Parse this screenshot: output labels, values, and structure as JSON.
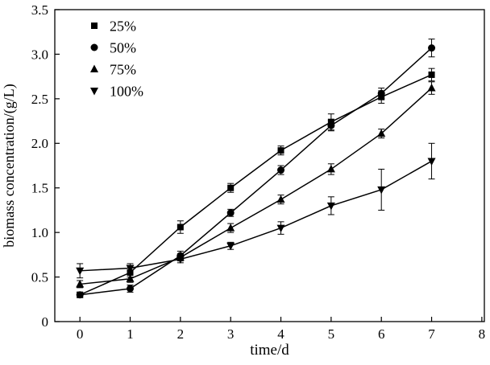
{
  "chart_data": {
    "type": "line",
    "title": "",
    "xlabel": "time/d",
    "ylabel": "biomass concentration/(g/L)",
    "xlim": [
      -0.5,
      8.05
    ],
    "ylim": [
      0,
      3.5
    ],
    "xticks": [
      0,
      1,
      2,
      3,
      4,
      5,
      6,
      7,
      8
    ],
    "xtick_labels": [
      "0",
      "1",
      "2",
      "3",
      "4",
      "5",
      "6",
      "7",
      "8"
    ],
    "yticks": [
      0,
      0.5,
      1.0,
      1.5,
      2.0,
      2.5,
      3.0,
      3.5
    ],
    "ytick_labels": [
      "0",
      "0.5",
      "1.0",
      "1.5",
      "2.0",
      "2.5",
      "3.0",
      "3.5"
    ],
    "grid": false,
    "legend_position": "top-left",
    "line_color": "#000000",
    "background": "#ffffff",
    "x": [
      0,
      1,
      2,
      3,
      4,
      5,
      6,
      7
    ],
    "series": [
      {
        "name": "25%",
        "marker": "square",
        "values": [
          0.3,
          0.55,
          1.06,
          1.5,
          1.92,
          2.24,
          2.52,
          2.77
        ],
        "errors": [
          0.03,
          0.05,
          0.07,
          0.05,
          0.05,
          0.09,
          0.07,
          0.07
        ]
      },
      {
        "name": "50%",
        "marker": "circle",
        "values": [
          0.3,
          0.37,
          0.74,
          1.22,
          1.7,
          2.2,
          2.56,
          3.07
        ],
        "errors": [
          0.03,
          0.04,
          0.05,
          0.04,
          0.05,
          0.06,
          0.06,
          0.1
        ]
      },
      {
        "name": "75%",
        "marker": "triangle-up",
        "values": [
          0.42,
          0.48,
          0.72,
          1.05,
          1.37,
          1.71,
          2.11,
          2.62
        ],
        "errors": [
          0.04,
          0.04,
          0.04,
          0.05,
          0.05,
          0.06,
          0.05,
          0.07
        ]
      },
      {
        "name": "100%",
        "marker": "triangle-down",
        "values": [
          0.57,
          0.6,
          0.7,
          0.85,
          1.05,
          1.3,
          1.48,
          1.8
        ],
        "errors": [
          0.08,
          0.05,
          0.04,
          0.04,
          0.07,
          0.1,
          0.23,
          0.2
        ]
      }
    ]
  }
}
